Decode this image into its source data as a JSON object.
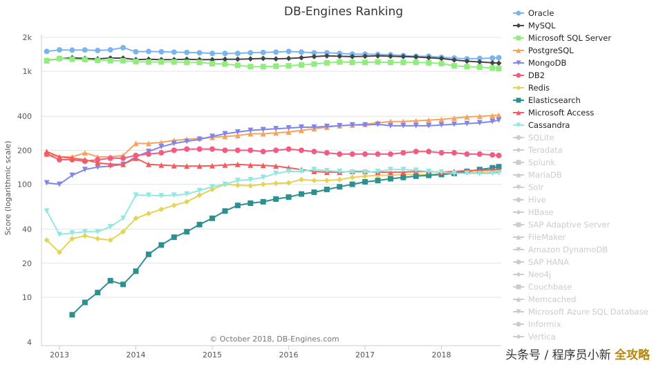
{
  "chart_data": {
    "type": "line",
    "title": "DB-Engines Ranking",
    "ylabel": "Score (logarithmic scale)",
    "xlabel": "",
    "credits": "© October 2018, DB-Engines.com",
    "yscale": "log",
    "ylim": [
      4,
      2000
    ],
    "yticks": [
      {
        "v": 4,
        "label": "4"
      },
      {
        "v": 10,
        "label": "10"
      },
      {
        "v": 20,
        "label": "20"
      },
      {
        "v": 40,
        "label": "40"
      },
      {
        "v": 100,
        "label": "100"
      },
      {
        "v": 200,
        "label": "200"
      },
      {
        "v": 400,
        "label": "400"
      },
      {
        "v": 1000,
        "label": "1k"
      },
      {
        "v": 2000,
        "label": "2k"
      }
    ],
    "xticks": [
      "2013",
      "2014",
      "2015",
      "2016",
      "2017",
      "2018"
    ],
    "grid": true,
    "legend_position": "right",
    "x": [
      "2012-11",
      "2013-01",
      "2013-03",
      "2013-05",
      "2013-07",
      "2013-09",
      "2013-11",
      "2014-01",
      "2014-03",
      "2014-05",
      "2014-07",
      "2014-09",
      "2014-11",
      "2015-01",
      "2015-03",
      "2015-05",
      "2015-07",
      "2015-09",
      "2015-11",
      "2016-01",
      "2016-03",
      "2016-05",
      "2016-07",
      "2016-09",
      "2016-11",
      "2017-01",
      "2017-03",
      "2017-05",
      "2017-07",
      "2017-09",
      "2017-11",
      "2018-01",
      "2018-03",
      "2018-05",
      "2018-07",
      "2018-09",
      "2018-10"
    ],
    "series": [
      {
        "name": "Oracle",
        "color": "#7cb5ec",
        "marker": "circle",
        "visible": true,
        "values": [
          1500,
          1550,
          1540,
          1545,
          1530,
          1550,
          1620,
          1490,
          1500,
          1490,
          1480,
          1470,
          1460,
          1440,
          1440,
          1440,
          1460,
          1470,
          1480,
          1500,
          1480,
          1460,
          1460,
          1440,
          1420,
          1420,
          1410,
          1400,
          1380,
          1360,
          1360,
          1330,
          1310,
          1290,
          1300,
          1310,
          1320
        ]
      },
      {
        "name": "MySQL",
        "color": "#434348",
        "marker": "diamond",
        "visible": true,
        "values": [
          1250,
          1290,
          1320,
          1300,
          1290,
          1310,
          1310,
          1270,
          1280,
          1270,
          1270,
          1280,
          1270,
          1270,
          1280,
          1280,
          1290,
          1300,
          1290,
          1300,
          1320,
          1350,
          1370,
          1360,
          1350,
          1360,
          1370,
          1360,
          1350,
          1340,
          1320,
          1300,
          1260,
          1230,
          1210,
          1190,
          1180
        ]
      },
      {
        "name": "Microsoft SQL Server",
        "color": "#90ed7d",
        "marker": "square",
        "visible": true,
        "values": [
          1240,
          1300,
          1280,
          1270,
          1250,
          1240,
          1240,
          1220,
          1210,
          1210,
          1210,
          1200,
          1200,
          1170,
          1160,
          1130,
          1100,
          1100,
          1110,
          1120,
          1140,
          1160,
          1190,
          1210,
          1200,
          1200,
          1210,
          1200,
          1200,
          1200,
          1190,
          1170,
          1120,
          1100,
          1090,
          1070,
          1060
        ]
      },
      {
        "name": "PostgreSQL",
        "color": "#f7a35c",
        "marker": "triangle",
        "visible": true,
        "values": [
          185,
          175,
          175,
          190,
          175,
          175,
          180,
          230,
          230,
          235,
          245,
          250,
          255,
          260,
          265,
          270,
          280,
          280,
          285,
          290,
          300,
          310,
          320,
          330,
          335,
          340,
          350,
          360,
          360,
          365,
          370,
          375,
          385,
          395,
          400,
          405,
          410
        ]
      },
      {
        "name": "MongoDB",
        "color": "#8085e9",
        "marker": "triangle-down",
        "visible": true,
        "values": [
          103,
          100,
          120,
          135,
          142,
          145,
          150,
          175,
          195,
          215,
          230,
          240,
          250,
          265,
          280,
          290,
          300,
          305,
          310,
          315,
          320,
          320,
          325,
          330,
          335,
          335,
          340,
          330,
          330,
          330,
          330,
          335,
          340,
          345,
          350,
          360,
          370
        ]
      },
      {
        "name": "DB2",
        "color": "#f15c80",
        "marker": "circle",
        "visible": true,
        "values": [
          185,
          165,
          165,
          160,
          165,
          170,
          170,
          180,
          185,
          190,
          200,
          205,
          205,
          205,
          200,
          200,
          200,
          195,
          200,
          205,
          200,
          195,
          190,
          185,
          185,
          185,
          185,
          185,
          190,
          195,
          195,
          190,
          190,
          185,
          185,
          182,
          180
        ]
      },
      {
        "name": "Redis",
        "color": "#e4d354",
        "marker": "diamond",
        "visible": true,
        "values": [
          32,
          25,
          33,
          35,
          33,
          32,
          38,
          50,
          55,
          60,
          65,
          70,
          80,
          90,
          100,
          98,
          97,
          100,
          102,
          103,
          110,
          108,
          108,
          110,
          115,
          118,
          120,
          120,
          122,
          122,
          122,
          125,
          125,
          128,
          128,
          128,
          130
        ]
      },
      {
        "name": "Elasticsearch",
        "color": "#2b908f",
        "marker": "square",
        "visible": true,
        "values": [
          null,
          null,
          7,
          9,
          11,
          14,
          13,
          17,
          24,
          29,
          34,
          38,
          44,
          50,
          58,
          65,
          68,
          70,
          74,
          77,
          82,
          85,
          90,
          95,
          100,
          105,
          108,
          112,
          115,
          118,
          120,
          122,
          125,
          130,
          135,
          140,
          143
        ]
      },
      {
        "name": "Microsoft Access",
        "color": "#f45b5b",
        "marker": "triangle",
        "visible": true,
        "values": [
          195,
          175,
          170,
          165,
          155,
          150,
          150,
          170,
          150,
          148,
          146,
          145,
          145,
          146,
          148,
          150,
          148,
          147,
          145,
          140,
          135,
          130,
          128,
          128,
          130,
          130,
          128,
          128,
          128,
          130,
          130,
          128,
          130,
          132,
          133,
          134,
          135
        ]
      },
      {
        "name": "Cassandra",
        "color": "#91e8e1",
        "marker": "triangle-down",
        "visible": true,
        "values": [
          58,
          36,
          37,
          38,
          38,
          42,
          50,
          80,
          80,
          79,
          80,
          82,
          88,
          95,
          100,
          108,
          110,
          115,
          125,
          130,
          130,
          135,
          132,
          130,
          128,
          128,
          130,
          135,
          135,
          133,
          130,
          128,
          125,
          125,
          124,
          125,
          126
        ]
      },
      {
        "name": "SQLite",
        "color": "#cccccc",
        "marker": "circle",
        "visible": false
      },
      {
        "name": "Teradata",
        "color": "#cccccc",
        "marker": "diamond",
        "visible": false
      },
      {
        "name": "Splunk",
        "color": "#cccccc",
        "marker": "square",
        "visible": false
      },
      {
        "name": "MariaDB",
        "color": "#cccccc",
        "marker": "triangle",
        "visible": false
      },
      {
        "name": "Solr",
        "color": "#cccccc",
        "marker": "triangle-down",
        "visible": false
      },
      {
        "name": "Hive",
        "color": "#cccccc",
        "marker": "circle",
        "visible": false
      },
      {
        "name": "HBase",
        "color": "#cccccc",
        "marker": "diamond",
        "visible": false
      },
      {
        "name": "SAP Adaptive Server",
        "color": "#cccccc",
        "marker": "square",
        "visible": false
      },
      {
        "name": "FileMaker",
        "color": "#cccccc",
        "marker": "triangle",
        "visible": false
      },
      {
        "name": "Amazon DynamoDB",
        "color": "#cccccc",
        "marker": "triangle-down",
        "visible": false
      },
      {
        "name": "SAP HANA",
        "color": "#cccccc",
        "marker": "circle",
        "visible": false
      },
      {
        "name": "Neo4j",
        "color": "#cccccc",
        "marker": "diamond",
        "visible": false
      },
      {
        "name": "Couchbase",
        "color": "#cccccc",
        "marker": "square",
        "visible": false
      },
      {
        "name": "Memcached",
        "color": "#cccccc",
        "marker": "triangle",
        "visible": false
      },
      {
        "name": "Microsoft Azure SQL Database",
        "color": "#cccccc",
        "marker": "triangle-down",
        "visible": false
      },
      {
        "name": "Informix",
        "color": "#cccccc",
        "marker": "circle",
        "visible": false
      },
      {
        "name": "Vertica",
        "color": "#cccccc",
        "marker": "diamond",
        "visible": false
      }
    ]
  },
  "watermark": {
    "prefix": "头条号 / 程序员小新",
    "suffix": "全攻略"
  }
}
